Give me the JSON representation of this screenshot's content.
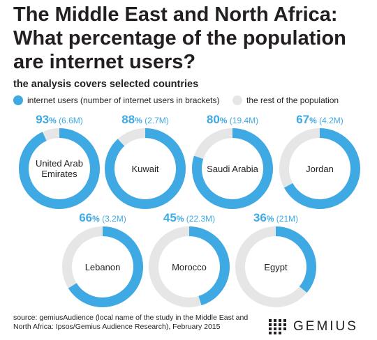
{
  "title": "The Middle East and North Africa: What percentage of the population are internet users?",
  "subtitle": "the analysis covers selected countries",
  "legend": {
    "users": "internet users (number of internet users in brackets)",
    "rest": "the rest of the population"
  },
  "colors": {
    "users": "#3fa9e3",
    "rest": "#e6e6e6"
  },
  "source": "source: gemiusAudience (local name of the study in the Middle East and North Africa: Ipsos/Gemius Audience Research), February 2015",
  "brand": "GEMIUS",
  "chart_data": {
    "type": "pie",
    "title": "The Middle East and North Africa: What percentage of the population are internet users?",
    "series": [
      {
        "country": "United Arab Emirates",
        "percent": 93,
        "percent_suffix": "%",
        "users": "(6.6M)"
      },
      {
        "country": "Kuwait",
        "percent": 88,
        "percent_suffix": "%",
        "users": "(2.7M)"
      },
      {
        "country": "Saudi Arabia",
        "percent": 80,
        "percent_suffix": "%",
        "users": "(19.4M)"
      },
      {
        "country": "Jordan",
        "percent": 67,
        "percent_suffix": "%",
        "users": "(4.2M)"
      },
      {
        "country": "Lebanon",
        "percent": 66,
        "percent_suffix": "%",
        "users": "(3.2M)"
      },
      {
        "country": "Morocco",
        "percent": 45,
        "percent_suffix": "%",
        "users": "(22.3M)"
      },
      {
        "country": "Egypt",
        "percent": 36,
        "percent_suffix": "%",
        "users": "(21M)"
      }
    ]
  }
}
